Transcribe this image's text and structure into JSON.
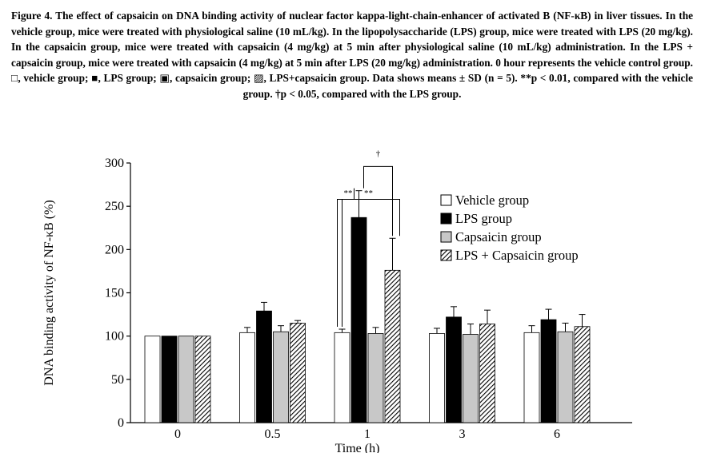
{
  "caption": "Figure 4. The effect of capsaicin on DNA binding activity of nuclear factor kappa-light-chain-enhancer of activated B (NF-κB) in liver tissues. In the vehicle group, mice were treated with physiological saline (10 mL/kg). In the lipopolysaccharide (LPS) group, mice were treated with LPS (20 mg/kg). In the capsaicin group, mice were treated with capsaicin (4 mg/kg) at 5 min after physiological saline (10 mL/kg) administration. In the LPS + capsaicin group, mice were treated with capsaicin (4 mg/kg) at 5 min after LPS (20 mg/kg) administration. 0 hour represents the vehicle control group. □, vehicle group; ■, LPS group; ▣, capsaicin group; ▨, LPS+capsaicin group. Data shows means ± SD (n = 5). **p < 0.01, compared with the vehicle group. †p < 0.05, compared with the LPS group.",
  "chart_data": {
    "type": "bar",
    "xlabel": "Time (h)",
    "ylabel": "DNA binding activity of NF-κB (%)",
    "ylim": [
      0,
      300
    ],
    "yticks": [
      0,
      50,
      100,
      150,
      200,
      250,
      300
    ],
    "categories": [
      "0",
      "0.5",
      "1",
      "3",
      "6"
    ],
    "series": [
      {
        "name": "Vehicle group",
        "values": [
          100,
          104,
          104,
          103,
          104
        ],
        "errors": [
          0,
          6,
          4,
          6,
          8
        ],
        "fill": "#ffffff"
      },
      {
        "name": "LPS group",
        "values": [
          100,
          129,
          237,
          122,
          119
        ],
        "errors": [
          0,
          10,
          31,
          12,
          12
        ],
        "fill": "#000000"
      },
      {
        "name": "Capsaicin group",
        "values": [
          100,
          105,
          103,
          102,
          105
        ],
        "errors": [
          0,
          7,
          7,
          12,
          10
        ],
        "fill": "#c8c8c8"
      },
      {
        "name": "LPS + Capsaicin group",
        "values": [
          100,
          115,
          176,
          114,
          111
        ],
        "errors": [
          0,
          3,
          37,
          16,
          14
        ],
        "fill": "hatch"
      }
    ],
    "significance": [
      {
        "category": "1",
        "from": "Vehicle group",
        "to": "LPS group",
        "label": "**"
      },
      {
        "category": "1",
        "from": "Vehicle group",
        "to": "LPS + Capsaicin group",
        "label": "**"
      },
      {
        "category": "1",
        "from": "LPS group",
        "to": "LPS + Capsaicin group",
        "label": "†"
      }
    ],
    "legend_position": "right"
  }
}
